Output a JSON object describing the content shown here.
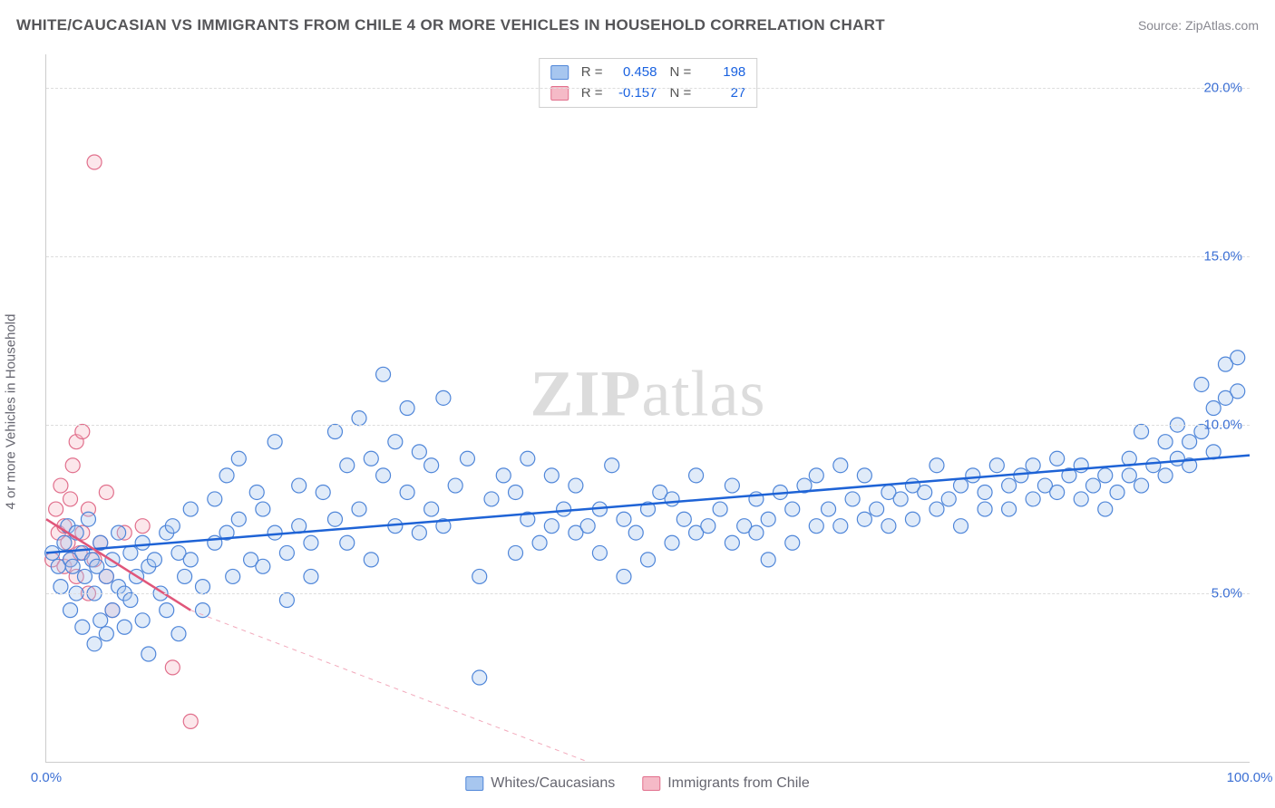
{
  "chart": {
    "type": "scatter",
    "title": "WHITE/CAUCASIAN VS IMMIGRANTS FROM CHILE 4 OR MORE VEHICLES IN HOUSEHOLD CORRELATION CHART",
    "source": "Source: ZipAtlas.com",
    "y_axis_label": "4 or more Vehicles in Household",
    "watermark_a": "ZIP",
    "watermark_b": "atlas",
    "background_color": "#ffffff",
    "grid_color": "#dddddd",
    "border_color": "#cccccc",
    "tick_label_color": "#3b6fd4",
    "axis_title_color": "#666670",
    "x_range": [
      0,
      100
    ],
    "y_range": [
      0,
      21
    ],
    "y_ticks": [
      5.0,
      10.0,
      15.0,
      20.0
    ],
    "y_tick_labels": [
      "5.0%",
      "10.0%",
      "15.0%",
      "20.0%"
    ],
    "x_ticks": [
      0,
      100
    ],
    "x_tick_labels": [
      "0.0%",
      "100.0%"
    ],
    "marker_radius": 8,
    "marker_stroke_width": 1.2,
    "marker_fill_opacity": 0.35,
    "title_fontsize": 17,
    "tick_fontsize": 15,
    "series": [
      {
        "key": "whites",
        "label": "Whites/Caucasians",
        "fill": "#a7c6ef",
        "stroke": "#4f86d9",
        "stat_r_label": "R =",
        "stat_r": "0.458",
        "stat_n_label": "N =",
        "stat_n": "198",
        "trend": {
          "x1": 0,
          "y1": 6.2,
          "x2": 100,
          "y2": 9.1,
          "color": "#1e63d6",
          "width": 2.5,
          "dash": ""
        },
        "points": [
          [
            0.5,
            6.2
          ],
          [
            1,
            5.8
          ],
          [
            1.2,
            5.2
          ],
          [
            1.5,
            6.5
          ],
          [
            1.8,
            7.0
          ],
          [
            2,
            6.0
          ],
          [
            2,
            4.5
          ],
          [
            2.2,
            5.8
          ],
          [
            2.5,
            5.0
          ],
          [
            2.5,
            6.8
          ],
          [
            3,
            4.0
          ],
          [
            3,
            6.2
          ],
          [
            3.2,
            5.5
          ],
          [
            3.5,
            7.2
          ],
          [
            3.8,
            6.0
          ],
          [
            4,
            3.5
          ],
          [
            4,
            5.0
          ],
          [
            4.2,
            5.8
          ],
          [
            4.5,
            4.2
          ],
          [
            4.5,
            6.5
          ],
          [
            5,
            5.5
          ],
          [
            5,
            3.8
          ],
          [
            5.5,
            6.0
          ],
          [
            5.5,
            4.5
          ],
          [
            6,
            6.8
          ],
          [
            6,
            5.2
          ],
          [
            6.5,
            5.0
          ],
          [
            6.5,
            4.0
          ],
          [
            7,
            6.2
          ],
          [
            7,
            4.8
          ],
          [
            7.5,
            5.5
          ],
          [
            8,
            4.2
          ],
          [
            8,
            6.5
          ],
          [
            8.5,
            3.2
          ],
          [
            8.5,
            5.8
          ],
          [
            9,
            6.0
          ],
          [
            9.5,
            5.0
          ],
          [
            10,
            4.5
          ],
          [
            10,
            6.8
          ],
          [
            10.5,
            7.0
          ],
          [
            11,
            3.8
          ],
          [
            11,
            6.2
          ],
          [
            11.5,
            5.5
          ],
          [
            12,
            7.5
          ],
          [
            12,
            6.0
          ],
          [
            13,
            5.2
          ],
          [
            13,
            4.5
          ],
          [
            14,
            7.8
          ],
          [
            14,
            6.5
          ],
          [
            15,
            8.5
          ],
          [
            15,
            6.8
          ],
          [
            15.5,
            5.5
          ],
          [
            16,
            7.2
          ],
          [
            16,
            9.0
          ],
          [
            17,
            6.0
          ],
          [
            17.5,
            8.0
          ],
          [
            18,
            7.5
          ],
          [
            18,
            5.8
          ],
          [
            19,
            9.5
          ],
          [
            19,
            6.8
          ],
          [
            20,
            6.2
          ],
          [
            20,
            4.8
          ],
          [
            21,
            8.2
          ],
          [
            21,
            7.0
          ],
          [
            22,
            6.5
          ],
          [
            22,
            5.5
          ],
          [
            23,
            8.0
          ],
          [
            24,
            7.2
          ],
          [
            24,
            9.8
          ],
          [
            25,
            8.8
          ],
          [
            25,
            6.5
          ],
          [
            26,
            7.5
          ],
          [
            26,
            10.2
          ],
          [
            27,
            6.0
          ],
          [
            27,
            9.0
          ],
          [
            28,
            8.5
          ],
          [
            28,
            11.5
          ],
          [
            29,
            7.0
          ],
          [
            29,
            9.5
          ],
          [
            30,
            8.0
          ],
          [
            30,
            10.5
          ],
          [
            31,
            6.8
          ],
          [
            31,
            9.2
          ],
          [
            32,
            7.5
          ],
          [
            32,
            8.8
          ],
          [
            33,
            10.8
          ],
          [
            33,
            7.0
          ],
          [
            34,
            8.2
          ],
          [
            35,
            9.0
          ],
          [
            36,
            5.5
          ],
          [
            36,
            2.5
          ],
          [
            37,
            7.8
          ],
          [
            38,
            8.5
          ],
          [
            39,
            6.2
          ],
          [
            39,
            8.0
          ],
          [
            40,
            7.2
          ],
          [
            40,
            9.0
          ],
          [
            41,
            6.5
          ],
          [
            42,
            7.0
          ],
          [
            42,
            8.5
          ],
          [
            43,
            7.5
          ],
          [
            44,
            6.8
          ],
          [
            44,
            8.2
          ],
          [
            45,
            7.0
          ],
          [
            46,
            7.5
          ],
          [
            46,
            6.2
          ],
          [
            47,
            8.8
          ],
          [
            48,
            7.2
          ],
          [
            48,
            5.5
          ],
          [
            49,
            6.8
          ],
          [
            50,
            7.5
          ],
          [
            50,
            6.0
          ],
          [
            51,
            8.0
          ],
          [
            52,
            6.5
          ],
          [
            52,
            7.8
          ],
          [
            53,
            7.2
          ],
          [
            54,
            6.8
          ],
          [
            54,
            8.5
          ],
          [
            55,
            7.0
          ],
          [
            56,
            7.5
          ],
          [
            57,
            6.5
          ],
          [
            57,
            8.2
          ],
          [
            58,
            7.0
          ],
          [
            59,
            6.8
          ],
          [
            59,
            7.8
          ],
          [
            60,
            7.2
          ],
          [
            60,
            6.0
          ],
          [
            61,
            8.0
          ],
          [
            62,
            7.5
          ],
          [
            62,
            6.5
          ],
          [
            63,
            8.2
          ],
          [
            64,
            7.0
          ],
          [
            64,
            8.5
          ],
          [
            65,
            7.5
          ],
          [
            66,
            7.0
          ],
          [
            66,
            8.8
          ],
          [
            67,
            7.8
          ],
          [
            68,
            7.2
          ],
          [
            68,
            8.5
          ],
          [
            69,
            7.5
          ],
          [
            70,
            8.0
          ],
          [
            70,
            7.0
          ],
          [
            71,
            7.8
          ],
          [
            72,
            8.2
          ],
          [
            72,
            7.2
          ],
          [
            73,
            8.0
          ],
          [
            74,
            7.5
          ],
          [
            74,
            8.8
          ],
          [
            75,
            7.8
          ],
          [
            76,
            8.2
          ],
          [
            76,
            7.0
          ],
          [
            77,
            8.5
          ],
          [
            78,
            7.5
          ],
          [
            78,
            8.0
          ],
          [
            79,
            8.8
          ],
          [
            80,
            7.5
          ],
          [
            80,
            8.2
          ],
          [
            81,
            8.5
          ],
          [
            82,
            7.8
          ],
          [
            82,
            8.8
          ],
          [
            83,
            8.2
          ],
          [
            84,
            8.0
          ],
          [
            84,
            9.0
          ],
          [
            85,
            8.5
          ],
          [
            86,
            7.8
          ],
          [
            86,
            8.8
          ],
          [
            87,
            8.2
          ],
          [
            88,
            8.5
          ],
          [
            88,
            7.5
          ],
          [
            89,
            8.0
          ],
          [
            90,
            9.0
          ],
          [
            90,
            8.5
          ],
          [
            91,
            9.8
          ],
          [
            91,
            8.2
          ],
          [
            92,
            8.8
          ],
          [
            93,
            8.5
          ],
          [
            93,
            9.5
          ],
          [
            94,
            9.0
          ],
          [
            94,
            10.0
          ],
          [
            95,
            9.5
          ],
          [
            95,
            8.8
          ],
          [
            96,
            9.8
          ],
          [
            96,
            11.2
          ],
          [
            97,
            10.5
          ],
          [
            97,
            9.2
          ],
          [
            98,
            10.8
          ],
          [
            98,
            11.8
          ],
          [
            99,
            11.0
          ],
          [
            99,
            12.0
          ]
        ]
      },
      {
        "key": "chile",
        "label": "Immigrants from Chile",
        "fill": "#f5bac7",
        "stroke": "#e16f8c",
        "stat_r_label": "R =",
        "stat_r": "-0.157",
        "stat_n_label": "N =",
        "stat_n": "27",
        "trend": {
          "x1": 0,
          "y1": 7.2,
          "x2": 12,
          "y2": 4.5,
          "color": "#e0567a",
          "width": 2.5,
          "dash": ""
        },
        "trend_ext": {
          "x1": 12,
          "y1": 4.5,
          "x2": 45,
          "y2": 0,
          "color": "#f2a9bb",
          "width": 1,
          "dash": "5,5"
        },
        "points": [
          [
            0.5,
            6.0
          ],
          [
            0.8,
            7.5
          ],
          [
            1.0,
            6.8
          ],
          [
            1.2,
            8.2
          ],
          [
            1.5,
            5.8
          ],
          [
            1.5,
            7.0
          ],
          [
            1.8,
            6.5
          ],
          [
            2.0,
            7.8
          ],
          [
            2.0,
            6.0
          ],
          [
            2.2,
            8.8
          ],
          [
            2.5,
            5.5
          ],
          [
            2.5,
            9.5
          ],
          [
            2.8,
            6.2
          ],
          [
            3.0,
            9.8
          ],
          [
            3.0,
            6.8
          ],
          [
            3.5,
            5.0
          ],
          [
            3.5,
            7.5
          ],
          [
            4.0,
            17.8
          ],
          [
            4.0,
            6.0
          ],
          [
            4.5,
            6.5
          ],
          [
            5.0,
            5.5
          ],
          [
            5.0,
            8.0
          ],
          [
            5.5,
            4.5
          ],
          [
            6.5,
            6.8
          ],
          [
            8.0,
            7.0
          ],
          [
            10.5,
            2.8
          ],
          [
            12.0,
            1.2
          ]
        ]
      }
    ],
    "legend": {
      "item1": "Whites/Caucasians",
      "item2": "Immigrants from Chile"
    }
  }
}
